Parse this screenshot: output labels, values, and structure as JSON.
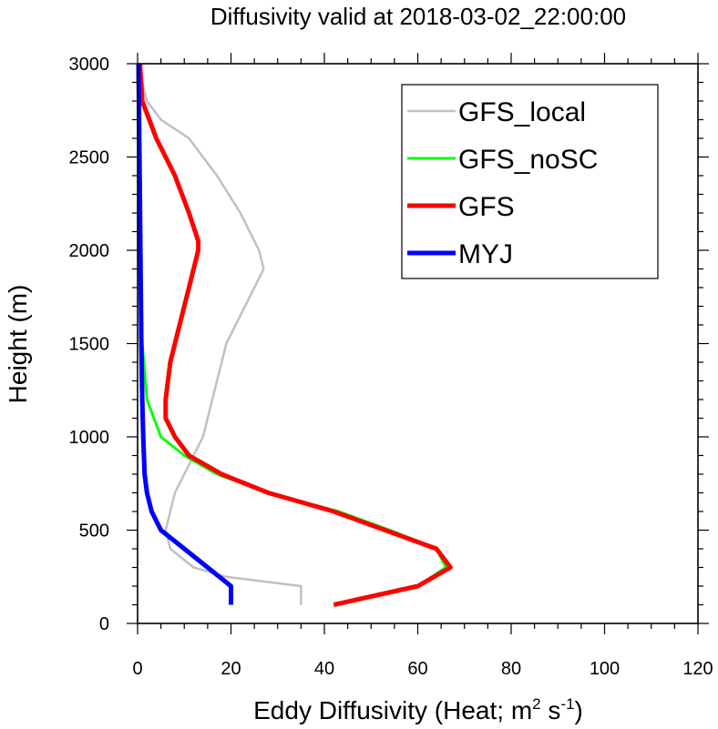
{
  "chart_data": {
    "type": "line",
    "title": "Diffusivity valid at 2018-03-02_22:00:00",
    "xlabel_main": "Eddy Diffusivity (Heat; m",
    "xlabel_sup1": "2",
    "xlabel_mid": " s",
    "xlabel_sup2": "-1",
    "xlabel_end": ")",
    "ylabel": "Height (m)",
    "xlim": [
      0,
      120
    ],
    "ylim": [
      0,
      3000
    ],
    "xticks": [
      "0",
      "20",
      "40",
      "60",
      "80",
      "100",
      "120"
    ],
    "yticks": [
      "0",
      "500",
      "1000",
      "1500",
      "2000",
      "2500",
      "3000"
    ],
    "grid": false,
    "legend_position": "top-right",
    "series": [
      {
        "name": "GFS_local",
        "color": "#c0c0c0",
        "width": 2.5,
        "points": [
          [
            35,
            100
          ],
          [
            35,
            200
          ],
          [
            19,
            250
          ],
          [
            12,
            300
          ],
          [
            7,
            400
          ],
          [
            6,
            500
          ],
          [
            7,
            600
          ],
          [
            8,
            700
          ],
          [
            10,
            800
          ],
          [
            12,
            900
          ],
          [
            14,
            1000
          ],
          [
            15,
            1100
          ],
          [
            16,
            1200
          ],
          [
            17,
            1300
          ],
          [
            18,
            1400
          ],
          [
            19,
            1500
          ],
          [
            21,
            1600
          ],
          [
            23,
            1700
          ],
          [
            27,
            1900
          ],
          [
            26,
            2000
          ],
          [
            22,
            2200
          ],
          [
            17,
            2400
          ],
          [
            11,
            2600
          ],
          [
            5,
            2700
          ],
          [
            2,
            2800
          ],
          [
            1,
            2900
          ],
          [
            0,
            3000
          ]
        ]
      },
      {
        "name": "GFS_noSC",
        "color": "#00ff00",
        "width": 3,
        "points": [
          [
            42,
            100
          ],
          [
            60,
            200
          ],
          [
            66,
            300
          ],
          [
            64,
            400
          ],
          [
            54,
            500
          ],
          [
            43,
            600
          ],
          [
            28,
            700
          ],
          [
            17,
            800
          ],
          [
            10,
            900
          ],
          [
            5,
            1000
          ],
          [
            2,
            1200
          ],
          [
            1,
            1500
          ],
          [
            0.7,
            2000
          ],
          [
            0.4,
            2500
          ],
          [
            0.2,
            3000
          ]
        ]
      },
      {
        "name": "GFS",
        "color": "#ff0000",
        "width": 5,
        "points": [
          [
            42,
            100
          ],
          [
            60,
            200
          ],
          [
            67,
            300
          ],
          [
            64,
            400
          ],
          [
            53,
            500
          ],
          [
            42,
            600
          ],
          [
            28,
            700
          ],
          [
            18,
            800
          ],
          [
            11,
            900
          ],
          [
            8,
            1000
          ],
          [
            6,
            1100
          ],
          [
            6,
            1200
          ],
          [
            7,
            1400
          ],
          [
            9,
            1600
          ],
          [
            11,
            1800
          ],
          [
            13,
            2000
          ],
          [
            13,
            2050
          ],
          [
            11,
            2200
          ],
          [
            8,
            2400
          ],
          [
            4,
            2600
          ],
          [
            1,
            2800
          ],
          [
            0.5,
            3000
          ]
        ]
      },
      {
        "name": "MYJ",
        "color": "#0000ff",
        "width": 5,
        "points": [
          [
            20,
            100
          ],
          [
            20,
            200
          ],
          [
            15,
            300
          ],
          [
            10,
            400
          ],
          [
            5,
            500
          ],
          [
            3,
            600
          ],
          [
            2,
            700
          ],
          [
            1.5,
            800
          ],
          [
            1.2,
            1000
          ],
          [
            1,
            1200
          ],
          [
            0.8,
            1500
          ],
          [
            0.6,
            2000
          ],
          [
            0.4,
            2500
          ],
          [
            0.2,
            3000
          ]
        ]
      }
    ]
  }
}
